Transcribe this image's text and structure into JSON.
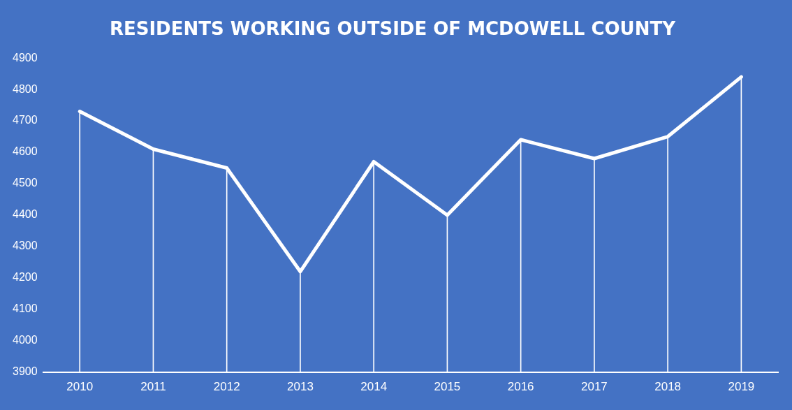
{
  "chart_data": {
    "type": "line",
    "title": "RESIDENTS WORKING OUTSIDE OF MCDOWELL COUNTY",
    "categories": [
      "2010",
      "2011",
      "2012",
      "2013",
      "2014",
      "2015",
      "2016",
      "2017",
      "2018",
      "2019"
    ],
    "series": [
      {
        "color": "#ffffff",
        "values": [
          4730,
          4610,
          4550,
          4220,
          4570,
          4400,
          4640,
          4580,
          4650,
          4840
        ]
      },
      {
        "type": "bar",
        "color": "#ffffff",
        "values": [
          4730,
          4610,
          4550,
          4220,
          4570,
          4400,
          4640,
          4580,
          4650,
          4840
        ]
      }
    ],
    "ylim": [
      3900,
      4900
    ],
    "yticks": [
      3900,
      4000,
      4100,
      4200,
      4300,
      4400,
      4500,
      4600,
      4700,
      4800,
      4900
    ],
    "grid": false,
    "legend": false,
    "marker": "none",
    "line_style": "solid"
  }
}
